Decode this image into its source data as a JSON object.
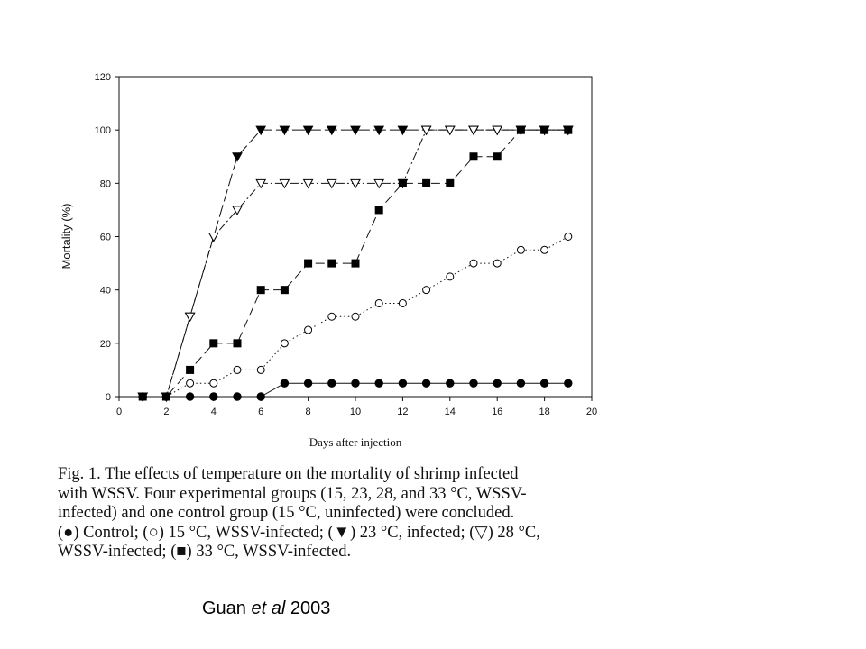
{
  "chart_data": {
    "type": "line",
    "xlabel": "Days after injection",
    "ylabel": "Mortality (%)",
    "xlim": [
      0,
      20
    ],
    "ylim": [
      0,
      120
    ],
    "xticks": [
      0,
      2,
      4,
      6,
      8,
      10,
      12,
      14,
      16,
      18,
      20
    ],
    "yticks": [
      0,
      20,
      40,
      60,
      80,
      100,
      120
    ],
    "grid": false,
    "series": [
      {
        "marker": "filled-circle",
        "line_style": "solid",
        "points": [
          [
            1,
            0
          ],
          [
            2,
            0
          ],
          [
            3,
            0
          ],
          [
            4,
            0
          ],
          [
            5,
            0
          ],
          [
            6,
            0
          ],
          [
            7,
            5
          ],
          [
            8,
            5
          ],
          [
            9,
            5
          ],
          [
            10,
            5
          ],
          [
            11,
            5
          ],
          [
            12,
            5
          ],
          [
            13,
            5
          ],
          [
            14,
            5
          ],
          [
            15,
            5
          ],
          [
            16,
            5
          ],
          [
            17,
            5
          ],
          [
            18,
            5
          ],
          [
            19,
            5
          ]
        ]
      },
      {
        "marker": "open-circle",
        "line_style": "dotted",
        "points": [
          [
            1,
            0
          ],
          [
            2,
            0
          ],
          [
            3,
            5
          ],
          [
            4,
            5
          ],
          [
            5,
            10
          ],
          [
            6,
            10
          ],
          [
            7,
            20
          ],
          [
            8,
            25
          ],
          [
            9,
            30
          ],
          [
            10,
            30
          ],
          [
            11,
            35
          ],
          [
            12,
            35
          ],
          [
            13,
            40
          ],
          [
            14,
            45
          ],
          [
            15,
            50
          ],
          [
            16,
            50
          ],
          [
            17,
            55
          ],
          [
            18,
            55
          ],
          [
            19,
            60
          ]
        ]
      },
      {
        "marker": "filled-triangle-down",
        "line_style": "long-dash",
        "points": [
          [
            1,
            0
          ],
          [
            2,
            0
          ],
          [
            3,
            30
          ],
          [
            4,
            60
          ],
          [
            5,
            90
          ],
          [
            6,
            100
          ],
          [
            7,
            100
          ],
          [
            8,
            100
          ],
          [
            9,
            100
          ],
          [
            10,
            100
          ],
          [
            11,
            100
          ],
          [
            12,
            100
          ],
          [
            13,
            100
          ],
          [
            14,
            100
          ],
          [
            15,
            100
          ],
          [
            16,
            100
          ],
          [
            17,
            100
          ],
          [
            18,
            100
          ],
          [
            19,
            100
          ]
        ]
      },
      {
        "marker": "open-triangle-down",
        "line_style": "dash-dot",
        "points": [
          [
            1,
            0
          ],
          [
            2,
            0
          ],
          [
            3,
            30
          ],
          [
            4,
            60
          ],
          [
            5,
            70
          ],
          [
            6,
            80
          ],
          [
            7,
            80
          ],
          [
            8,
            80
          ],
          [
            9,
            80
          ],
          [
            10,
            80
          ],
          [
            11,
            80
          ],
          [
            12,
            80
          ],
          [
            13,
            100
          ],
          [
            14,
            100
          ],
          [
            15,
            100
          ],
          [
            16,
            100
          ],
          [
            17,
            100
          ],
          [
            18,
            100
          ],
          [
            19,
            100
          ]
        ]
      },
      {
        "marker": "filled-square",
        "line_style": "dashed",
        "points": [
          [
            1,
            0
          ],
          [
            2,
            0
          ],
          [
            3,
            10
          ],
          [
            4,
            20
          ],
          [
            5,
            20
          ],
          [
            6,
            40
          ],
          [
            7,
            40
          ],
          [
            8,
            50
          ],
          [
            9,
            50
          ],
          [
            10,
            50
          ],
          [
            11,
            70
          ],
          [
            12,
            80
          ],
          [
            13,
            80
          ],
          [
            14,
            80
          ],
          [
            15,
            90
          ],
          [
            16,
            90
          ],
          [
            17,
            100
          ],
          [
            18,
            100
          ],
          [
            19,
            100
          ]
        ]
      }
    ]
  },
  "caption": {
    "lines": [
      "Fig. 1. The effects of temperature on the mortality of shrimp infected",
      "with WSSV. Four experimental groups (15, 23, 28, and 33 °C, WSSV-",
      "infected) and one control group (15 °C, uninfected) were concluded.",
      "(●) Control; (○) 15 °C, WSSV-infected; (▼) 23 °C, infected; (▽) 28 °C,",
      "WSSV-infected; (■) 33 °C, WSSV-infected."
    ]
  },
  "credit": {
    "author": "Guan",
    "etal": "et al",
    "year": "2003"
  }
}
